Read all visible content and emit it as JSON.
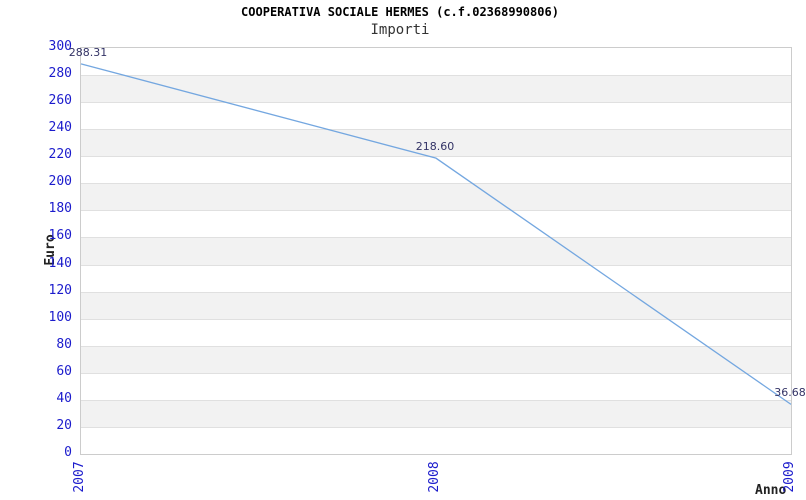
{
  "chart_data": {
    "type": "line",
    "title": "COOPERATIVA SOCIALE HERMES (c.f.02368990806)",
    "subtitle": "Importi",
    "xlabel": "Anno",
    "ylabel": "Euro",
    "categories": [
      "2007",
      "2008",
      "2009"
    ],
    "series": [
      {
        "name": "Importi",
        "values": [
          288.31,
          218.6,
          36.68
        ]
      }
    ],
    "data_labels": [
      "288.31",
      "218.60",
      "36.68"
    ],
    "ylim": [
      0,
      300
    ],
    "y_ticks": [
      0,
      20,
      40,
      60,
      80,
      100,
      120,
      140,
      160,
      180,
      200,
      220,
      240,
      260,
      280,
      300
    ],
    "grid": "horizontal-bands-alternating",
    "legend": "none",
    "colors": {
      "line": "#74a7e0",
      "tick_label": "#1b1bcc",
      "data_label": "#333366",
      "band_gray": "#f2f2f2",
      "band_white": "#ffffff",
      "grid_line": "#e0e0e0",
      "plot_border": "#cccccc",
      "title": "#000000",
      "axis_title": "#222222"
    }
  }
}
